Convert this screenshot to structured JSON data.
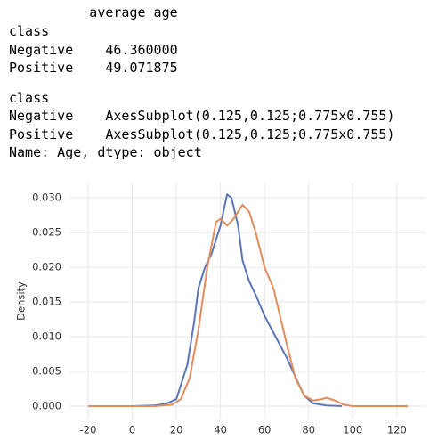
{
  "output": {
    "block1": [
      "          average_age",
      "class",
      "Negative    46.360000",
      "Positive    49.071875"
    ],
    "block2": [
      "class",
      "Negative    AxesSubplot(0.125,0.125;0.775x0.755)",
      "Positive    AxesSubplot(0.125,0.125;0.775x0.755)",
      "Name: Age, dtype: object"
    ]
  },
  "chart_data": {
    "type": "line",
    "ylabel": "Density",
    "xlim": [
      -28.5,
      133
    ],
    "ylim": [
      -0.0018,
      0.0322
    ],
    "xticks": [
      -20,
      0,
      20,
      40,
      60,
      80,
      100,
      120
    ],
    "yticks": [
      {
        "value": 0,
        "label": "0.000"
      },
      {
        "value": 0.005,
        "label": "0.005"
      },
      {
        "value": 0.01,
        "label": "0.010"
      },
      {
        "value": 0.015,
        "label": "0.015"
      },
      {
        "value": 0.02,
        "label": "0.020"
      },
      {
        "value": 0.025,
        "label": "0.025"
      },
      {
        "value": 0.03,
        "label": "0.030"
      }
    ],
    "grid": true,
    "series": [
      {
        "color": "#5b76b8",
        "x": [
          0,
          10,
          15,
          20,
          25,
          28,
          30,
          33,
          36,
          40,
          43,
          45,
          48,
          50,
          53,
          56,
          60,
          65,
          70,
          75,
          78,
          82,
          88,
          95
        ],
        "values": [
          0,
          0.0001,
          0.0003,
          0.001,
          0.006,
          0.012,
          0.017,
          0.02,
          0.022,
          0.026,
          0.0305,
          0.03,
          0.026,
          0.021,
          0.018,
          0.016,
          0.013,
          0.01,
          0.007,
          0.0035,
          0.0015,
          0.0004,
          0.0001,
          0
        ]
      },
      {
        "color": "#e38c5c",
        "x": [
          -20,
          10,
          18,
          22,
          26,
          30,
          34,
          38,
          40,
          43,
          46,
          50,
          53,
          56,
          60,
          64,
          67,
          70,
          74,
          78,
          82,
          86,
          88,
          92,
          96,
          100,
          125
        ],
        "values": [
          0,
          0,
          0.0002,
          0.001,
          0.004,
          0.011,
          0.02,
          0.0265,
          0.027,
          0.026,
          0.027,
          0.029,
          0.028,
          0.025,
          0.02,
          0.017,
          0.013,
          0.009,
          0.004,
          0.0015,
          0.0008,
          0.001,
          0.0012,
          0.0008,
          0.0002,
          0,
          0
        ]
      }
    ]
  }
}
